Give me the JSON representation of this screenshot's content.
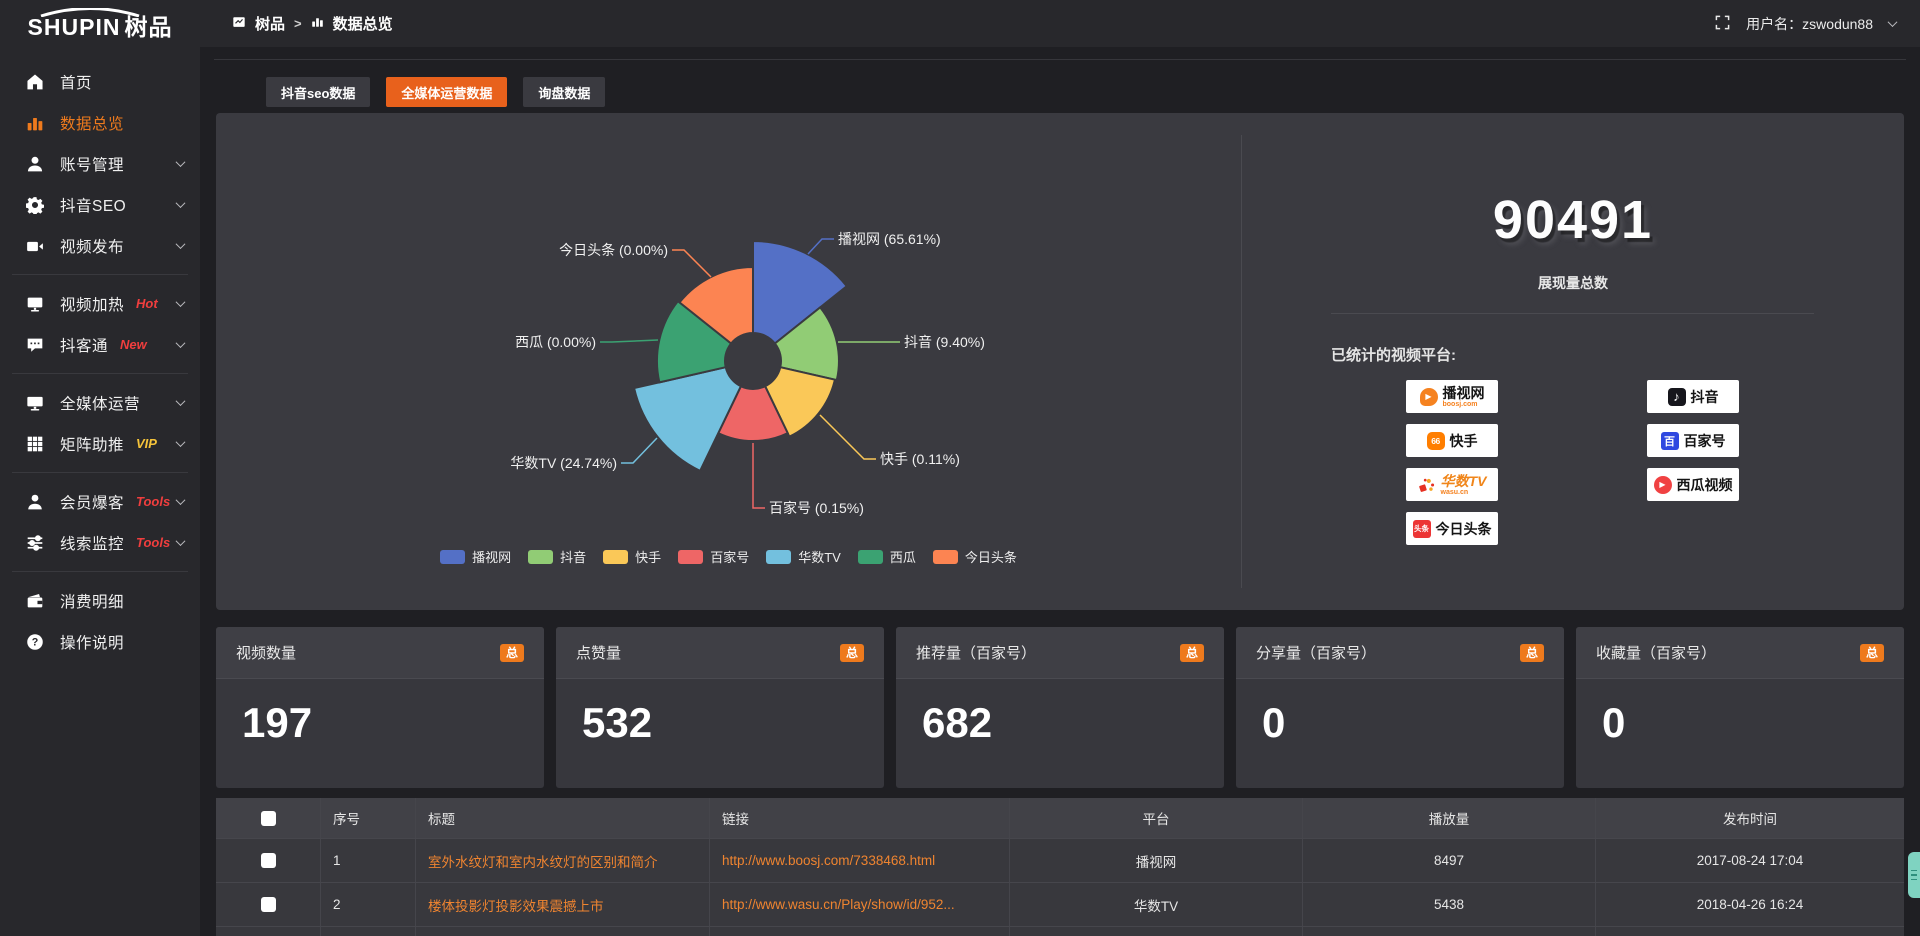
{
  "app": {
    "logo_en": "SHUPIN",
    "logo_cn": "树品",
    "breadcrumb": {
      "root": "树品",
      "sep": ">",
      "current": "数据总览"
    },
    "username": "用户名：zswodun88"
  },
  "sidebar": {
    "items": [
      {
        "label": "首页",
        "icon": "home-icon",
        "active": false,
        "chevron": false,
        "badge": "",
        "divider_after": false
      },
      {
        "label": "数据总览",
        "icon": "chart-bar-icon",
        "active": true,
        "chevron": false,
        "badge": "",
        "divider_after": false
      },
      {
        "label": "账号管理",
        "icon": "user-icon",
        "active": false,
        "chevron": true,
        "badge": "",
        "divider_after": false
      },
      {
        "label": "抖音SEO",
        "icon": "gear-icon",
        "active": false,
        "chevron": true,
        "badge": "",
        "divider_after": false
      },
      {
        "label": "视频发布",
        "icon": "video-icon",
        "active": false,
        "chevron": true,
        "badge": "",
        "divider_after": true
      },
      {
        "label": "视频加热",
        "icon": "screen-icon",
        "active": false,
        "chevron": true,
        "badge": "Hot",
        "badge_color": "#f03e3e",
        "divider_after": false
      },
      {
        "label": "抖客通",
        "icon": "chat-icon",
        "active": false,
        "chevron": true,
        "badge": "New",
        "badge_color": "#f03e3e",
        "divider_after": true
      },
      {
        "label": "全媒体运营",
        "icon": "monitor-icon",
        "active": false,
        "chevron": true,
        "badge": "",
        "divider_after": false
      },
      {
        "label": "矩阵助推",
        "icon": "grid-icon",
        "active": false,
        "chevron": true,
        "badge": "VIP",
        "badge_color": "#f6c43a",
        "divider_after": true
      },
      {
        "label": "会员爆客",
        "icon": "member-icon",
        "active": false,
        "chevron": true,
        "badge": "Tools",
        "badge_color": "#f03e3e",
        "divider_after": false
      },
      {
        "label": "线索监控",
        "icon": "sliders-icon",
        "active": false,
        "chevron": true,
        "badge": "Tools",
        "badge_color": "#f03e3e",
        "divider_after": true
      },
      {
        "label": "消费明细",
        "icon": "wallet-icon",
        "active": false,
        "chevron": false,
        "badge": "",
        "divider_after": false
      },
      {
        "label": "操作说明",
        "icon": "question-icon",
        "active": false,
        "chevron": false,
        "badge": "",
        "divider_after": false
      }
    ]
  },
  "tabs": [
    {
      "label": "抖音seo数据",
      "active": false
    },
    {
      "label": "全媒体运营数据",
      "active": true
    },
    {
      "label": "询盘数据",
      "active": false
    }
  ],
  "chart_data": {
    "type": "pie",
    "variant": "nightingale-rose",
    "title": "",
    "legend_position": "bottom",
    "inner_radius": 28,
    "radius_hints": [
      120,
      86,
      84,
      80,
      122,
      96,
      94
    ],
    "slices": [
      {
        "name": "播视网",
        "percent": 65.61,
        "color": "#5470c6",
        "label": "播视网 (65.61%)"
      },
      {
        "name": "抖音",
        "percent": 9.4,
        "color": "#91cc75",
        "label": "抖音 (9.40%)"
      },
      {
        "name": "快手",
        "percent": 0.11,
        "color": "#fac858",
        "label": "快手 (0.11%)"
      },
      {
        "name": "百家号",
        "percent": 0.15,
        "color": "#ee6666",
        "label": "百家号 (0.15%)"
      },
      {
        "name": "华数TV",
        "percent": 24.74,
        "color": "#73c0de",
        "label": "华数TV (24.74%)"
      },
      {
        "name": "西瓜",
        "percent": 0.0,
        "color": "#3ba272",
        "label": "西瓜 (0.00%)"
      },
      {
        "name": "今日头条",
        "percent": 0.0,
        "color": "#fc8452",
        "label": "今日头条 (0.00%)"
      }
    ],
    "legend": [
      "播视网",
      "抖音",
      "快手",
      "百家号",
      "华数TV",
      "西瓜",
      "今日头条"
    ]
  },
  "summary": {
    "total_value": "90491",
    "total_label": "展现量总数",
    "platforms_label": "已统计的视频平台:",
    "platforms": [
      {
        "name": "播视网",
        "sub": "boosj.com",
        "style": "boosj"
      },
      {
        "name": "抖音",
        "sub": "",
        "style": "douyin"
      },
      {
        "name": "快手",
        "sub": "",
        "style": "kuaishou"
      },
      {
        "name": "百家号",
        "sub": "",
        "style": "baijia"
      },
      {
        "name": "华数TV",
        "sub": "wasu.cn",
        "style": "wasu"
      },
      {
        "name": "西瓜视频",
        "sub": "",
        "style": "xigua"
      },
      {
        "name": "今日头条",
        "sub": "",
        "style": "toutiao"
      }
    ]
  },
  "cards": [
    {
      "title": "视频数量",
      "badge": "总",
      "value": "197"
    },
    {
      "title": "点赞量",
      "badge": "总",
      "value": "532"
    },
    {
      "title": "推荐量（百家号）",
      "badge": "总",
      "value": "682"
    },
    {
      "title": "分享量（百家号）",
      "badge": "总",
      "value": "0"
    },
    {
      "title": "收藏量（百家号）",
      "badge": "总",
      "value": "0"
    }
  ],
  "table": {
    "columns": [
      "序号",
      "标题",
      "链接",
      "平台",
      "播放量",
      "发布时间"
    ],
    "rows": [
      {
        "index": "1",
        "title": "室外水纹灯和室内水纹灯的区别和简介",
        "link": "http://www.boosj.com/7338468.html",
        "platform": "播视网",
        "plays": "8497",
        "time": "2017-08-24 17:04"
      },
      {
        "index": "2",
        "title": "楼体投影灯投影效果震撼上市",
        "link": "http://www.wasu.cn/Play/show/id/952...",
        "platform": "华数TV",
        "plays": "5438",
        "time": "2018-04-26 16:24"
      }
    ]
  },
  "colors": {
    "accent": "#ee7a1d",
    "tab_active": "#e8611c",
    "link": "#ef8430",
    "badge_hot": "#f03e3e",
    "badge_vip": "#f6c43a"
  }
}
